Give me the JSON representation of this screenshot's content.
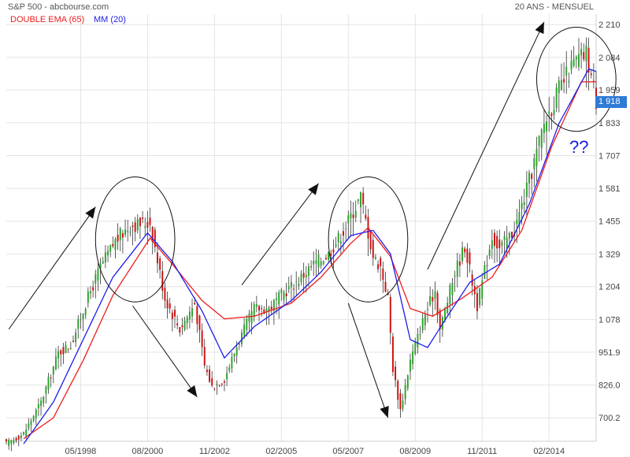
{
  "header": {
    "title": "S&P 500 - abcbourse.com",
    "period": "20 ANS - MENSUEL"
  },
  "legend": {
    "ema": "DOUBLE EMA (65)",
    "mm": "MM (20)"
  },
  "annotation": {
    "question": "??"
  },
  "last_price": "1 918",
  "colors": {
    "up": "#2fa12f",
    "down": "#cc1010",
    "ema": "#ee1c1c",
    "mm": "#1c1cee",
    "grid": "#e4e4e4",
    "axis_text": "#444444",
    "annotation": "#111111",
    "price_tag": "#2e7bd6"
  },
  "chart_data": {
    "type": "candlestick",
    "x_ticks": [
      "05/1998",
      "08/2000",
      "11/2002",
      "02/2005",
      "05/2007",
      "08/2009",
      "11/2011",
      "02/2014"
    ],
    "y_ticks": [
      "2 210",
      "2 084",
      "1 959",
      "1 833",
      "1 707",
      "1 581",
      "1 455",
      "1 329",
      "1 204",
      "1 078",
      "951.9",
      "826.0",
      "700.2"
    ],
    "y_tick_values": [
      2210,
      2084,
      1959,
      1833,
      1707,
      1581,
      1455,
      1329,
      1204,
      1078,
      951.9,
      826.0,
      700.2
    ],
    "ylim": [
      610,
      2250
    ],
    "x_range": [
      "1995-11",
      "2015-09"
    ],
    "close_anchors": [
      [
        "1995-11",
        600
      ],
      [
        "1996-06",
        640
      ],
      [
        "1997-01",
        760
      ],
      [
        "1997-08",
        950
      ],
      [
        "1998-01",
        980
      ],
      [
        "1998-07",
        1140
      ],
      [
        "1999-01",
        1280
      ],
      [
        "1999-07",
        1380
      ],
      [
        "2000-01",
        1440
      ],
      [
        "2000-09",
        1450
      ],
      [
        "2001-03",
        1160
      ],
      [
        "2001-09",
        1040
      ],
      [
        "2002-03",
        1140
      ],
      [
        "2002-07",
        900
      ],
      [
        "2002-10",
        820
      ],
      [
        "2003-03",
        850
      ],
      [
        "2003-09",
        1000
      ],
      [
        "2004-03",
        1120
      ],
      [
        "2004-09",
        1120
      ],
      [
        "2005-03",
        1180
      ],
      [
        "2005-09",
        1230
      ],
      [
        "2006-03",
        1290
      ],
      [
        "2006-09",
        1330
      ],
      [
        "2007-03",
        1420
      ],
      [
        "2007-10",
        1550
      ],
      [
        "2008-03",
        1320
      ],
      [
        "2008-06",
        1280
      ],
      [
        "2008-09",
        1160
      ],
      [
        "2008-11",
        890
      ],
      [
        "2009-02",
        730
      ],
      [
        "2009-06",
        920
      ],
      [
        "2009-12",
        1100
      ],
      [
        "2010-04",
        1190
      ],
      [
        "2010-06",
        1040
      ],
      [
        "2010-12",
        1260
      ],
      [
        "2011-04",
        1360
      ],
      [
        "2011-09",
        1130
      ],
      [
        "2012-03",
        1400
      ],
      [
        "2012-06",
        1350
      ],
      [
        "2012-12",
        1420
      ],
      [
        "2013-06",
        1610
      ],
      [
        "2013-12",
        1830
      ],
      [
        "2014-06",
        1960
      ],
      [
        "2014-12",
        2060
      ],
      [
        "2015-05",
        2100
      ],
      [
        "2015-08",
        1970
      ],
      [
        "2015-09",
        1918
      ]
    ],
    "ema_anchors": [
      [
        "1996-06",
        620
      ],
      [
        "1997-06",
        700
      ],
      [
        "1998-06",
        920
      ],
      [
        "1999-06",
        1170
      ],
      [
        "2000-09",
        1390
      ],
      [
        "2001-06",
        1290
      ],
      [
        "2002-06",
        1150
      ],
      [
        "2003-03",
        1080
      ],
      [
        "2004-03",
        1090
      ],
      [
        "2005-06",
        1140
      ],
      [
        "2006-06",
        1240
      ],
      [
        "2007-06",
        1370
      ],
      [
        "2008-01",
        1430
      ],
      [
        "2008-10",
        1320
      ],
      [
        "2009-06",
        1120
      ],
      [
        "2010-03",
        1090
      ],
      [
        "2011-03",
        1160
      ],
      [
        "2012-03",
        1240
      ],
      [
        "2013-03",
        1420
      ],
      [
        "2014-03",
        1740
      ],
      [
        "2015-03",
        1990
      ],
      [
        "2015-09",
        1990
      ]
    ],
    "mm_anchors": [
      [
        "1996-06",
        600
      ],
      [
        "1997-06",
        760
      ],
      [
        "1998-06",
        1000
      ],
      [
        "1999-06",
        1240
      ],
      [
        "2000-08",
        1410
      ],
      [
        "2001-06",
        1300
      ],
      [
        "2002-06",
        1110
      ],
      [
        "2003-03",
        930
      ],
      [
        "2004-03",
        1050
      ],
      [
        "2005-06",
        1150
      ],
      [
        "2006-06",
        1260
      ],
      [
        "2007-06",
        1400
      ],
      [
        "2008-03",
        1420
      ],
      [
        "2008-10",
        1330
      ],
      [
        "2009-06",
        1000
      ],
      [
        "2010-01",
        970
      ],
      [
        "2010-09",
        1090
      ],
      [
        "2011-06",
        1220
      ],
      [
        "2012-06",
        1290
      ],
      [
        "2013-06",
        1520
      ],
      [
        "2014-06",
        1830
      ],
      [
        "2015-06",
        2040
      ],
      [
        "2015-09",
        2030
      ]
    ],
    "arrows": [
      {
        "from": [
          "1995-12",
          1040
        ],
        "to": [
          "1998-11",
          1510
        ]
      },
      {
        "from": [
          "2000-02",
          1130
        ],
        "to": [
          "2002-04",
          780
        ]
      },
      {
        "from": [
          "2003-10",
          1210
        ],
        "to": [
          "2006-05",
          1600
        ]
      },
      {
        "from": [
          "2007-05",
          1140
        ],
        "to": [
          "2008-09",
          700
        ]
      },
      {
        "from": [
          "2010-01",
          1270
        ],
        "to": [
          "2013-12",
          2220
        ]
      }
    ],
    "circles": [
      {
        "center": [
          "2000-03",
          1385
        ],
        "rx_months": 16,
        "ry": 240
      },
      {
        "center": [
          "2008-01",
          1385
        ],
        "rx_months": 16,
        "ry": 240
      },
      {
        "center": [
          "2015-01",
          2000
        ],
        "rx_months": 16,
        "ry": 200
      }
    ]
  }
}
